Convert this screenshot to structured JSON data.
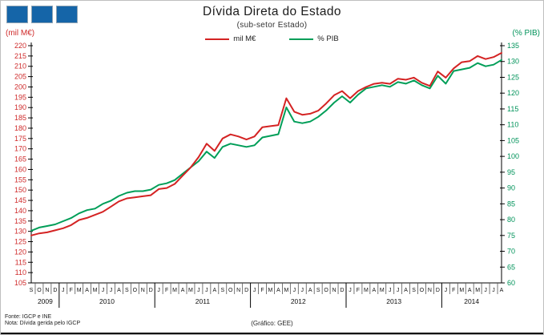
{
  "header": {
    "title": "Dívida Direta do  Estado",
    "subtitle": "(sub-setor  Estado)"
  },
  "legend": [
    {
      "label": "mil M€",
      "color": "#d42323"
    },
    {
      "label": "% PIB",
      "color": "#009e58"
    }
  ],
  "axes": {
    "left_caption": "(mil M€)",
    "right_caption": "(% PIB)"
  },
  "colors": {
    "red_series": "#d42323",
    "green_series": "#009e58",
    "left_axis_labels": "#cf2b2b",
    "right_axis_labels": "#00935a",
    "logo_blue": "#1565a8"
  },
  "footer": {
    "fonte": "Fonte: IGCP  e  INE",
    "nota": "Nota:  Dívida  gerida  pelo  IGCP",
    "grafico": "(Gráfico:  GEE)"
  },
  "chart_data": {
    "type": "line",
    "title": "Dívida Direta do Estado",
    "subtitle": "(sub-setor Estado)",
    "left_axis": {
      "label": "(mil M€)",
      "min": 105,
      "max": 220,
      "step": 5
    },
    "right_axis": {
      "label": "(% PIB)",
      "min": 60,
      "max": 135,
      "step": 5
    },
    "months": [
      "S",
      "O",
      "N",
      "D",
      "J",
      "F",
      "M",
      "A",
      "M",
      "J",
      "J",
      "A",
      "S",
      "O",
      "N",
      "D",
      "J",
      "F",
      "M",
      "A",
      "M",
      "J",
      "J",
      "A",
      "S",
      "O",
      "N",
      "D",
      "J",
      "F",
      "M",
      "A",
      "M",
      "J",
      "J",
      "A",
      "S",
      "O",
      "N",
      "D",
      "J",
      "F",
      "M",
      "A",
      "M",
      "J",
      "J",
      "A",
      "S",
      "O",
      "N",
      "D",
      "J",
      "F",
      "M",
      "A",
      "M",
      "J",
      "J",
      "A"
    ],
    "years": [
      {
        "label": "2009",
        "count": 4
      },
      {
        "label": "2010",
        "count": 12
      },
      {
        "label": "2011",
        "count": 12
      },
      {
        "label": "2012",
        "count": 12
      },
      {
        "label": "2013",
        "count": 12
      },
      {
        "label": "2014",
        "count": 8
      }
    ],
    "series": [
      {
        "name": "mil M€",
        "axis": "left",
        "color": "#d42323",
        "values": [
          128,
          129,
          129.5,
          130.5,
          131.5,
          133,
          135.5,
          136.5,
          138,
          139.5,
          142,
          144.5,
          146,
          146.5,
          147,
          147.5,
          150.5,
          151,
          153,
          157,
          161,
          166,
          172.5,
          169,
          175,
          177,
          176,
          174.5,
          176,
          180.5,
          181,
          181.5,
          194.5,
          188,
          186.5,
          187,
          188.5,
          192,
          196,
          198,
          194.5,
          198,
          200,
          201.5,
          202,
          201.5,
          204,
          203.5,
          204.5,
          202,
          200.5,
          207.5,
          204.5,
          209,
          212,
          212.5,
          215,
          213.5,
          214.5,
          216.5
        ]
      },
      {
        "name": "% PIB",
        "axis": "right",
        "color": "#009e58",
        "values": [
          76.5,
          77.5,
          78,
          78.5,
          79.5,
          80.5,
          82,
          83,
          83.5,
          85,
          86,
          87.5,
          88.5,
          89,
          89,
          89.5,
          91,
          91.5,
          92.5,
          94.5,
          96.5,
          98.5,
          101.5,
          99.5,
          103,
          104,
          103.5,
          103,
          103.5,
          106,
          106.5,
          107,
          115.5,
          111,
          110.5,
          111,
          112.5,
          114.5,
          117,
          119,
          117,
          119.5,
          121.5,
          122,
          122.5,
          122,
          123.5,
          123,
          124,
          122.5,
          121.5,
          125.5,
          123,
          127,
          127.5,
          128,
          129.5,
          128.5,
          129,
          130.5
        ]
      }
    ],
    "grid": false,
    "legend_position": "top-center"
  }
}
